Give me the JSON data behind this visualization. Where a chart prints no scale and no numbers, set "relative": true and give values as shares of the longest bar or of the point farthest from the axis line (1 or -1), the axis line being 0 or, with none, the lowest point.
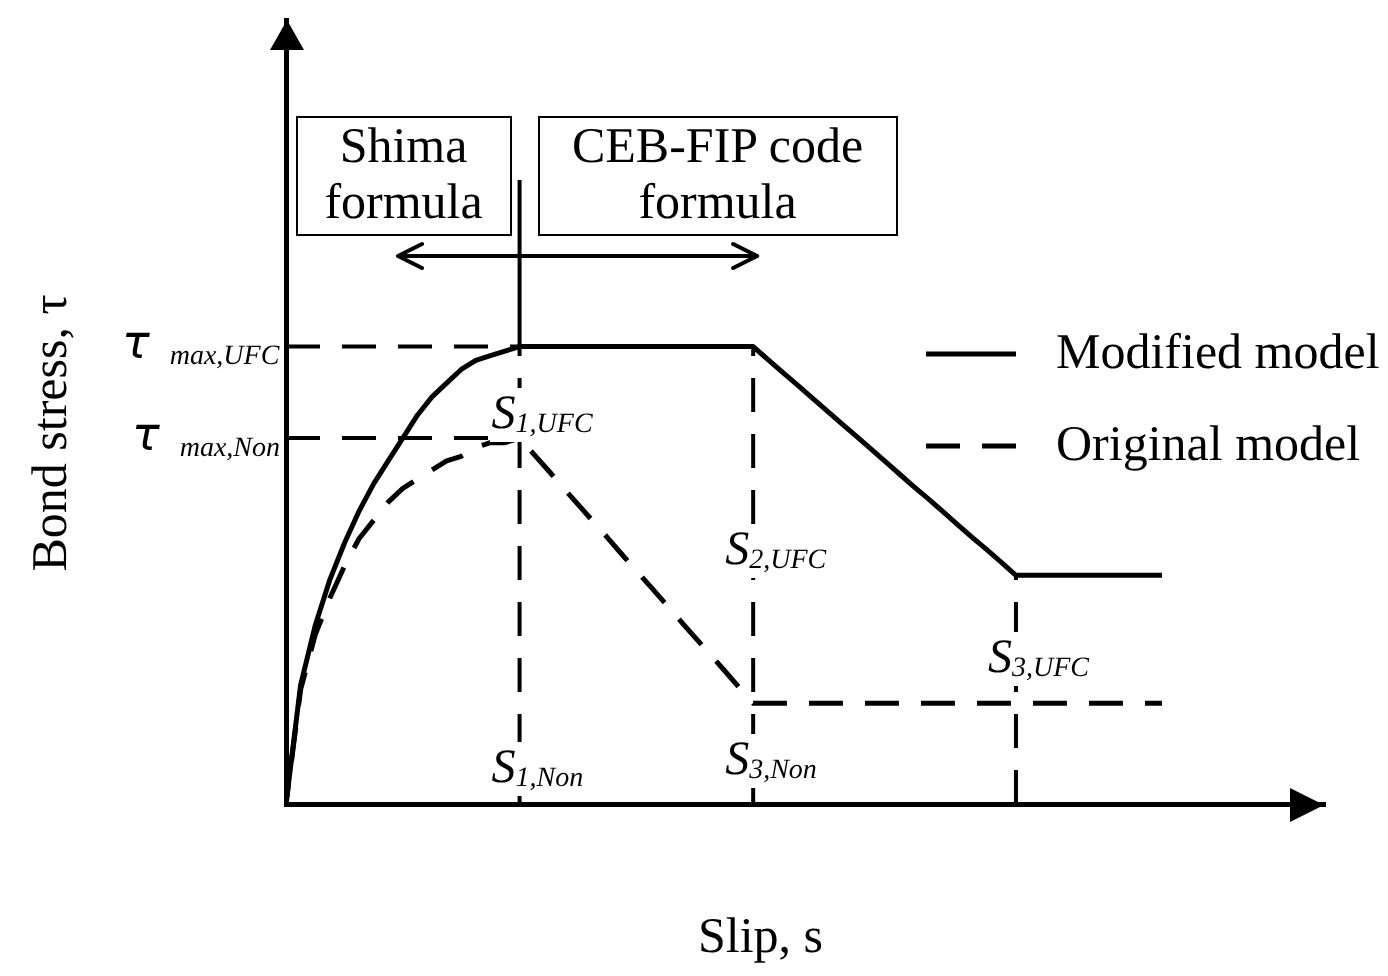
{
  "chart_data": {
    "type": "line",
    "relative": true,
    "xlabel": "Slip, s",
    "ylabel": "Bond stress, τ",
    "legend": "right",
    "categories": [
      null,
      null,
      null,
      null,
      null,
      null,
      null,
      null,
      null,
      null,
      null,
      null,
      null,
      null,
      null,
      null,
      null,
      null,
      null,
      null,
      null,
      null,
      null,
      null,
      null,
      null,
      null,
      null,
      null,
      null,
      null,
      null,
      null,
      null,
      null,
      null,
      null,
      null,
      null,
      null,
      null,
      null,
      null,
      null,
      null,
      null,
      null,
      null,
      null,
      null,
      null,
      null,
      null,
      null,
      null,
      null,
      null,
      null,
      null,
      null,
      null
    ],
    "series": [
      {
        "name": "Modified model",
        "color": "#000000",
        "line_style": "solid",
        "values": [
          0,
          0.26,
          0.39,
          0.49,
          0.57,
          0.64,
          0.7,
          0.75,
          0.8,
          0.85,
          0.89,
          0.92,
          0.95,
          0.97,
          0.98,
          0.99,
          1,
          1,
          1,
          1,
          1,
          1,
          1,
          1,
          1,
          1,
          1,
          1,
          1,
          1,
          1,
          1,
          1,
          0.972,
          0.944,
          0.917,
          0.889,
          0.861,
          0.833,
          0.806,
          0.778,
          0.75,
          0.722,
          0.694,
          0.667,
          0.639,
          0.611,
          0.583,
          0.556,
          0.528,
          0.5,
          0.5,
          0.5,
          0.5,
          0.5,
          0.5,
          0.5,
          0.5,
          0.5,
          0.5,
          0.5
        ]
      },
      {
        "name": "Original model",
        "color": "#000000",
        "line_style": "dashed",
        "values": [
          0,
          0.25,
          0.37,
          0.45,
          0.52,
          0.58,
          0.62,
          0.66,
          0.69,
          0.71,
          0.73,
          0.75,
          0.76,
          0.78,
          0.79,
          0.79,
          0.8,
          0.764,
          0.728,
          0.691,
          0.655,
          0.619,
          0.583,
          0.546,
          0.51,
          0.474,
          0.438,
          0.401,
          0.365,
          0.329,
          0.293,
          0.256,
          0.22,
          0.22,
          0.22,
          0.22,
          0.22,
          0.22,
          0.22,
          0.22,
          0.22,
          0.22,
          0.22,
          0.22,
          0.22,
          0.22,
          0.22,
          0.22,
          0.22,
          0.22,
          0.22,
          0.22,
          0.22,
          0.22,
          0.22,
          0.22,
          0.22,
          0.22,
          0.22,
          0.22,
          0.22
        ]
      }
    ],
    "ref_lines": [
      {
        "axis": "y",
        "value": 1,
        "label": "τ$_{max,UFC}$",
        "line_style": "dashed",
        "color": "#000000"
      },
      {
        "axis": "y",
        "value": 0.8,
        "label": "τ$_{max,Non}$",
        "line_style": "dashed",
        "color": "#000000"
      }
    ],
    "annotations": [
      "Shima formula",
      "CEB-FIP code formula",
      "S$_{1,UFC}$",
      "S$_{1,Non}$",
      "S$_{2,UFC}$",
      "S$_{3,Non}$",
      "S$_{3,UFC}$"
    ]
  }
}
